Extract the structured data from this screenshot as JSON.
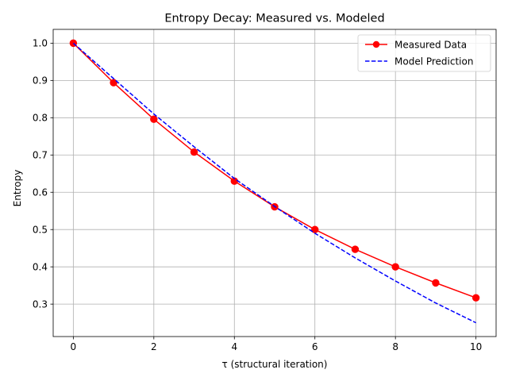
{
  "chart_data": {
    "type": "line",
    "title": "Entropy Decay: Measured vs. Modeled",
    "xlabel": "τ (structural iteration)",
    "ylabel": "Entropy",
    "xlim": [
      -0.5,
      10.5
    ],
    "ylim": [
      0.213,
      1.037
    ],
    "x_ticks": [
      0,
      2,
      4,
      6,
      8,
      10
    ],
    "x_tick_labels": [
      "0",
      "2",
      "4",
      "6",
      "8",
      "10"
    ],
    "y_ticks": [
      0.3,
      0.4,
      0.5,
      0.6,
      0.7,
      0.8,
      0.9,
      1.0
    ],
    "y_tick_labels": [
      "0.3",
      "0.4",
      "0.5",
      "0.6",
      "0.7",
      "0.8",
      "0.9",
      "1.0"
    ],
    "grid": true,
    "legend_position": "top-right",
    "x": [
      0,
      1,
      2,
      3,
      4,
      5,
      6,
      7,
      8,
      9,
      10
    ],
    "series": [
      {
        "name": "Measured Data",
        "style": "solid-with-markers",
        "color": "#ff0000",
        "values": [
          1.0,
          0.894,
          0.796,
          0.708,
          0.63,
          0.561,
          0.5,
          0.447,
          0.4,
          0.357,
          0.317
        ]
      },
      {
        "name": "Model Prediction",
        "style": "dashed",
        "color": "#0000ff",
        "values": [
          1.0,
          0.905,
          0.81,
          0.722,
          0.637,
          0.562,
          0.49,
          0.424,
          0.362,
          0.303,
          0.25
        ]
      }
    ]
  }
}
